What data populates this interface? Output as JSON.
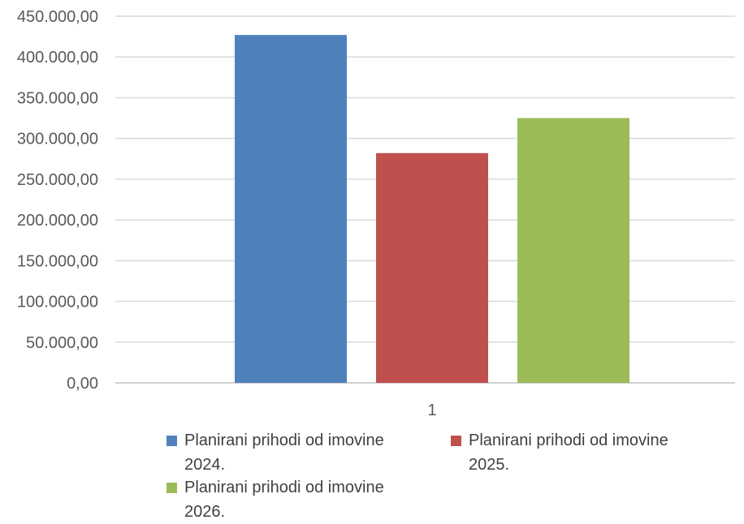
{
  "chart_data": {
    "type": "bar",
    "categories": [
      "1"
    ],
    "ylim": [
      0,
      450000
    ],
    "ytick_step": 50000,
    "ytick_labels": [
      "0,00",
      "50.000,00",
      "100.000,00",
      "150.000,00",
      "200.000,00",
      "250.000,00",
      "300.000,00",
      "350.000,00",
      "400.000,00",
      "450.000,00"
    ],
    "grid": true,
    "legend_position": "bottom",
    "series": [
      {
        "name": "Planirani prihodi od imovine 2024.",
        "values": [
          427000
        ],
        "color": "#4f81bd"
      },
      {
        "name": "Planirani prihodi od imovine 2025.",
        "values": [
          282000
        ],
        "color": "#c0504d"
      },
      {
        "name": "Planirani prihodi od imovine 2026.",
        "values": [
          325000
        ],
        "color": "#9bbb59"
      }
    ]
  }
}
